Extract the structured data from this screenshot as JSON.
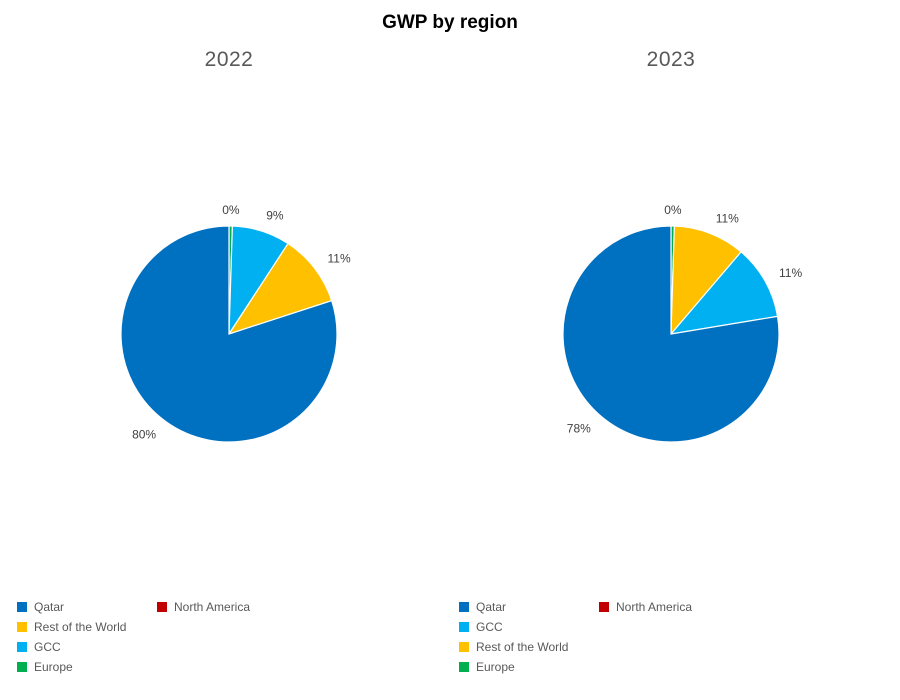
{
  "title": "GWP by region",
  "chart_data": [
    {
      "type": "pie",
      "title": "2022",
      "slices": [
        {
          "label": "Europe",
          "value": 0.5,
          "display": "0%",
          "color": "#00B050"
        },
        {
          "label": "GCC",
          "value": 8.7,
          "display": "9%",
          "color": "#00B0F0"
        },
        {
          "label": "Rest of the World",
          "value": 10.8,
          "display": "11%",
          "color": "#FFC000"
        },
        {
          "label": "Qatar",
          "value": 80,
          "display": "80%",
          "color": "#0070C0"
        },
        {
          "label": "North America",
          "value": 0,
          "display": "",
          "color": "#C00000"
        }
      ],
      "legend_position": "bottom",
      "legend": [
        {
          "label": "Qatar",
          "color": "#0070C0"
        },
        {
          "label": "North America",
          "color": "#C00000"
        },
        {
          "label": "Rest of the World",
          "color": "#FFC000"
        },
        {
          "label": "GCC",
          "color": "#00B0F0"
        },
        {
          "label": "Europe",
          "color": "#00B050"
        }
      ]
    },
    {
      "type": "pie",
      "title": "2023",
      "slices": [
        {
          "label": "Europe",
          "value": 0.5,
          "display": "0%",
          "color": "#00B050"
        },
        {
          "label": "Rest of the World",
          "value": 10.8,
          "display": "11%",
          "color": "#FFC000"
        },
        {
          "label": "GCC",
          "value": 11.2,
          "display": "11%",
          "color": "#00B0F0"
        },
        {
          "label": "Qatar",
          "value": 78,
          "display": "78%",
          "color": "#0070C0"
        },
        {
          "label": "North America",
          "value": 0,
          "display": "",
          "color": "#C00000"
        }
      ],
      "legend_position": "bottom",
      "legend": [
        {
          "label": "Qatar",
          "color": "#0070C0"
        },
        {
          "label": "North America",
          "color": "#C00000"
        },
        {
          "label": "GCC",
          "color": "#00B0F0"
        },
        {
          "label": "Rest of the World",
          "color": "#FFC000"
        },
        {
          "label": "Europe",
          "color": "#00B050"
        }
      ]
    }
  ]
}
